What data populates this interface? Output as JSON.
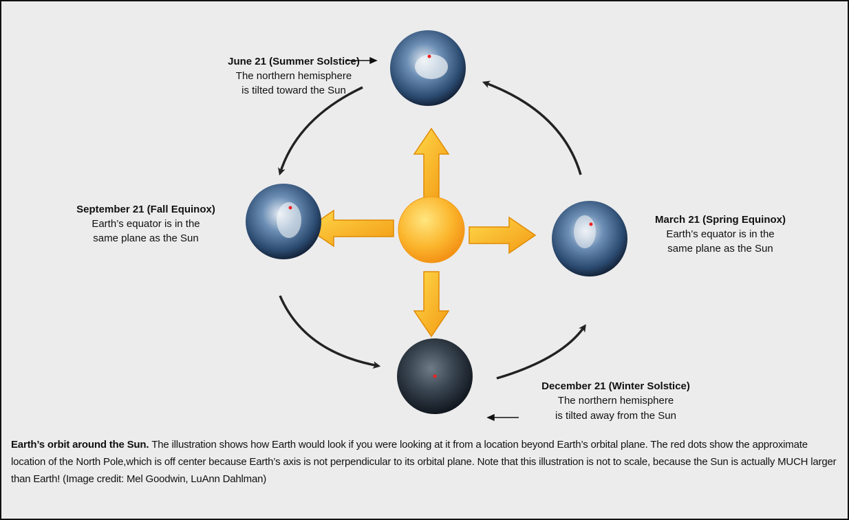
{
  "nodes": [
    {
      "title": "June 21 (Summer Solstice)",
      "lines": [
        "The northern hemisphere",
        "is tilted toward the Sun"
      ]
    },
    {
      "title": "September 21 (Fall Equinox)",
      "lines": [
        "Earth’s equator is in the",
        "same plane as the Sun"
      ]
    },
    {
      "title": "March 21 (Spring Equinox)",
      "lines": [
        "Earth’s equator is in the",
        "same plane as the Sun"
      ]
    },
    {
      "title": "December 21 (Winter Solstice)",
      "lines": [
        "The northern hemisphere",
        "is tilted away from the Sun"
      ]
    }
  ],
  "caption": {
    "lead": "Earth’s orbit around the Sun.",
    "text": "The illustration shows how Earth would look if you were looking at it from a location beyond Earth’s orbital plane. The red dots show the approximate location of the North Pole,which is off center because Earth’s axis is not perpendicular to its orbital plane. Note that this illustration is not to scale, because the Sun is actually MUCH larger than Earth! (Image credit: Mel Goodwin, LuAnn Dahlman)"
  }
}
